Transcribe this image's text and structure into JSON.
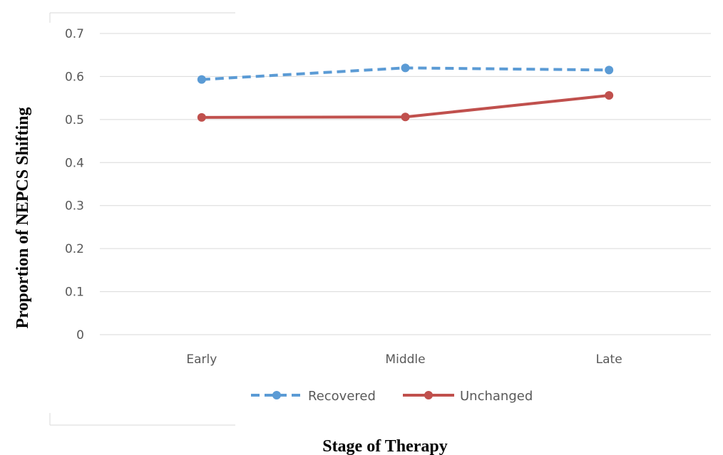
{
  "chart_data": {
    "type": "line",
    "title": "",
    "xlabel": "Stage of Therapy",
    "ylabel": "Proportion of NEPCS Shifting",
    "categories": [
      "Early",
      "Middle",
      "Late"
    ],
    "ylim": [
      0,
      0.7
    ],
    "yticks": [
      "0",
      "0.1",
      "0.2",
      "0.3",
      "0.4",
      "0.5",
      "0.6",
      "0.7"
    ],
    "grid": true,
    "legend_position": "bottom",
    "series": [
      {
        "name": "Recovered",
        "values": [
          0.593,
          0.62,
          0.615
        ],
        "color": "#5B9BD5",
        "style": "dashed"
      },
      {
        "name": "Unchanged",
        "values": [
          0.505,
          0.506,
          0.556
        ],
        "color": "#C0504D",
        "style": "solid"
      }
    ]
  }
}
